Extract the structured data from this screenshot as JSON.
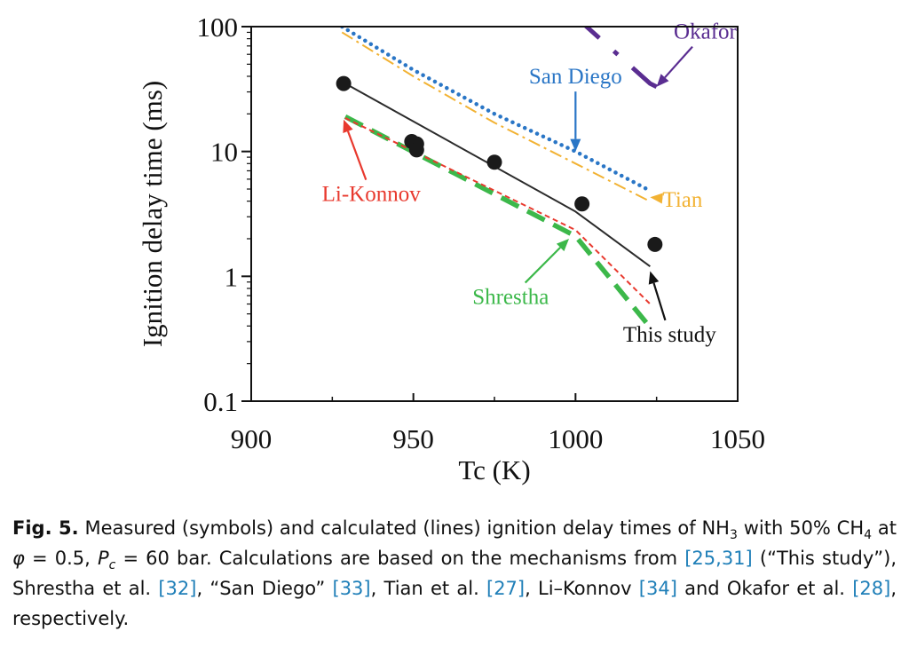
{
  "chart_data": {
    "type": "line",
    "xlabel": "Tc (K)",
    "ylabel": "Ignition delay time (ms)",
    "xlim": [
      900,
      1050
    ],
    "ylim": [
      0.1,
      100
    ],
    "yscale": "log",
    "x_ticks": [
      900,
      950,
      1000,
      1050
    ],
    "y_ticks": [
      {
        "value": 0.1,
        "label": "0.1"
      },
      {
        "value": 1,
        "label": "1"
      },
      {
        "value": 10,
        "label": "10"
      },
      {
        "value": 100,
        "label": "100"
      }
    ],
    "grid": false,
    "measured": {
      "color": "#1a1a1a",
      "points": [
        {
          "x": 928.5,
          "y": 35
        },
        {
          "x": 949.5,
          "y": 12
        },
        {
          "x": 951,
          "y": 11.5
        },
        {
          "x": 951,
          "y": 10.3
        },
        {
          "x": 975,
          "y": 8.2
        },
        {
          "x": 1002,
          "y": 3.8
        },
        {
          "x": 1024.5,
          "y": 1.8
        }
      ]
    },
    "series": [
      {
        "label": "This study",
        "color": "#2b2b2b",
        "style": "solid",
        "x": [
          929,
          1000,
          1023
        ],
        "y": [
          35,
          3.3,
          1.2
        ],
        "annotation": {
          "text": {
            "x": 1029,
            "y": 0.3
          },
          "arrow_to": {
            "x": 1023,
            "y": 1.1
          }
        }
      },
      {
        "label": "Shrestha",
        "color": "#3cb84a",
        "style": "long-dash",
        "x": [
          929,
          1000,
          1022
        ],
        "y": [
          19,
          2.1,
          0.42
        ],
        "annotation": {
          "text": {
            "x": 980,
            "y": 0.6
          },
          "arrow_to": {
            "x": 998,
            "y": 2.0
          }
        }
      },
      {
        "label": "San Diego",
        "color": "#2a76c6",
        "style": "dotted",
        "x": [
          928,
          950,
          975,
          1000,
          1022
        ],
        "y": [
          100,
          45,
          20,
          10,
          5
        ],
        "annotation": {
          "text": {
            "x": 1000,
            "y": 35
          },
          "arrow_to": {
            "x": 1000,
            "y": 10
          }
        }
      },
      {
        "label": "Tian",
        "color": "#f2b233",
        "style": "dash-dot",
        "x": [
          928,
          950,
          975,
          1000,
          1022
        ],
        "y": [
          90,
          40,
          17,
          8,
          4.1
        ],
        "annotation": {
          "text": {
            "x": 1033,
            "y": 3.6
          },
          "arrow_to": {
            "x": 1023,
            "y": 4.3
          }
        }
      },
      {
        "label": "Li-Konnov",
        "color": "#e8392e",
        "style": "short-dash",
        "x": [
          929,
          1000,
          1023
        ],
        "y": [
          18.5,
          2.35,
          0.6
        ],
        "annotation": {
          "text": {
            "x": 937,
            "y": 4.0
          },
          "arrow_to": {
            "x": 928.5,
            "y": 18
          }
        }
      },
      {
        "label": "Okafor",
        "color": "#5a2d91",
        "style": "dash-dot",
        "x": [
          1000,
          1023,
          1025
        ],
        "y": [
          120,
          35,
          33
        ],
        "annotation": {
          "text": {
            "x": 1040,
            "y": 80
          },
          "arrow_to": {
            "x": 1025,
            "y": 33
          }
        }
      }
    ]
  },
  "caption": {
    "label": "Fig. 5.",
    "t1": " Measured (symbols) and calculated (lines) ignition delay times of NH",
    "sub1": "3",
    "t2": " with 50% CH",
    "sub2": "4",
    "t3": " at ",
    "phi": "φ",
    "t4": " = 0.5, ",
    "p": "P",
    "pc_sub": "c",
    "t5": " = 60 bar. Calculations are based on the mechanisms from ",
    "ref1": "[25,31]",
    "t6": " (“This study”), Shrestha et al. ",
    "ref2": "[32]",
    "t7": ", “San Diego” ",
    "ref3": "[33]",
    "t8": ", Tian et al. ",
    "ref4": "[27]",
    "t9": ", Li–Konnov ",
    "ref5": "[34]",
    "t10": " and Okafor et al. ",
    "ref6": "[28]",
    "t11": ", respectively."
  }
}
